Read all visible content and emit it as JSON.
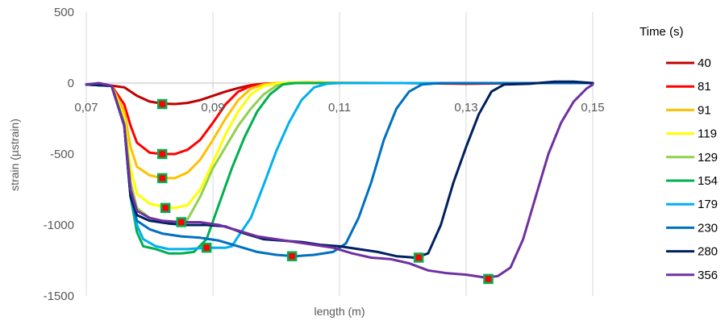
{
  "chart_data": {
    "type": "line",
    "xlabel": "length (m)",
    "ylabel": "strain (µstrain)",
    "xlim": [
      0.07,
      0.15
    ],
    "ylim": [
      -1500,
      500
    ],
    "x_ticks": [
      {
        "value": 0.07,
        "label": "0,07"
      },
      {
        "value": 0.09,
        "label": "0,09"
      },
      {
        "value": 0.11,
        "label": "0,11"
      },
      {
        "value": 0.13,
        "label": "0,13"
      },
      {
        "value": 0.15,
        "label": "0,15"
      }
    ],
    "y_ticks": [
      {
        "value": 500,
        "label": "500"
      },
      {
        "value": 0,
        "label": "0"
      },
      {
        "value": -500,
        "label": "-500"
      },
      {
        "value": -1000,
        "label": "-1000"
      },
      {
        "value": -1500,
        "label": "-1500"
      }
    ],
    "grid": "vertical",
    "legend": {
      "title": "Time (s)",
      "position": "right"
    },
    "series": [
      {
        "name": "40",
        "color": "#c00000",
        "points": [
          [
            0.07,
            -10
          ],
          [
            0.073,
            -12
          ],
          [
            0.076,
            -30
          ],
          [
            0.078,
            -90
          ],
          [
            0.08,
            -130
          ],
          [
            0.082,
            -145
          ],
          [
            0.084,
            -148
          ],
          [
            0.086,
            -140
          ],
          [
            0.088,
            -120
          ],
          [
            0.09,
            -90
          ],
          [
            0.092,
            -60
          ],
          [
            0.094,
            -35
          ],
          [
            0.096,
            -15
          ],
          [
            0.098,
            -5
          ],
          [
            0.101,
            0
          ],
          [
            0.105,
            5
          ],
          [
            0.11,
            0
          ],
          [
            0.12,
            0
          ],
          [
            0.13,
            -5
          ],
          [
            0.14,
            0
          ],
          [
            0.15,
            0
          ]
        ]
      },
      {
        "name": "81",
        "color": "#ff0000",
        "points": [
          [
            0.07,
            -10
          ],
          [
            0.074,
            -20
          ],
          [
            0.076,
            -150
          ],
          [
            0.077,
            -300
          ],
          [
            0.078,
            -420
          ],
          [
            0.08,
            -490
          ],
          [
            0.082,
            -500
          ],
          [
            0.084,
            -500
          ],
          [
            0.086,
            -470
          ],
          [
            0.088,
            -400
          ],
          [
            0.09,
            -280
          ],
          [
            0.092,
            -150
          ],
          [
            0.094,
            -60
          ],
          [
            0.096,
            -20
          ],
          [
            0.098,
            -5
          ],
          [
            0.101,
            0
          ],
          [
            0.11,
            0
          ],
          [
            0.12,
            0
          ],
          [
            0.13,
            0
          ],
          [
            0.14,
            0
          ],
          [
            0.15,
            0
          ]
        ]
      },
      {
        "name": "91",
        "color": "#ffc000",
        "points": [
          [
            0.07,
            -10
          ],
          [
            0.074,
            -20
          ],
          [
            0.076,
            -200
          ],
          [
            0.077,
            -450
          ],
          [
            0.078,
            -590
          ],
          [
            0.08,
            -650
          ],
          [
            0.082,
            -670
          ],
          [
            0.084,
            -670
          ],
          [
            0.086,
            -630
          ],
          [
            0.088,
            -540
          ],
          [
            0.09,
            -400
          ],
          [
            0.092,
            -250
          ],
          [
            0.094,
            -120
          ],
          [
            0.096,
            -40
          ],
          [
            0.098,
            -10
          ],
          [
            0.1,
            0
          ],
          [
            0.105,
            5
          ],
          [
            0.12,
            0
          ],
          [
            0.15,
            0
          ]
        ]
      },
      {
        "name": "119",
        "color": "#ffff00",
        "points": [
          [
            0.07,
            -10
          ],
          [
            0.074,
            -20
          ],
          [
            0.076,
            -250
          ],
          [
            0.077,
            -600
          ],
          [
            0.078,
            -780
          ],
          [
            0.08,
            -850
          ],
          [
            0.082,
            -870
          ],
          [
            0.084,
            -880
          ],
          [
            0.086,
            -860
          ],
          [
            0.088,
            -750
          ],
          [
            0.09,
            -560
          ],
          [
            0.092,
            -360
          ],
          [
            0.094,
            -200
          ],
          [
            0.096,
            -80
          ],
          [
            0.098,
            -20
          ],
          [
            0.1,
            -5
          ],
          [
            0.102,
            5
          ],
          [
            0.11,
            0
          ],
          [
            0.15,
            0
          ]
        ]
      },
      {
        "name": "129",
        "color": "#92d050",
        "points": [
          [
            0.07,
            -10
          ],
          [
            0.074,
            -20
          ],
          [
            0.076,
            -280
          ],
          [
            0.077,
            -700
          ],
          [
            0.078,
            -880
          ],
          [
            0.08,
            -950
          ],
          [
            0.082,
            -980
          ],
          [
            0.084,
            -990
          ],
          [
            0.086,
            -960
          ],
          [
            0.088,
            -800
          ],
          [
            0.09,
            -600
          ],
          [
            0.092,
            -450
          ],
          [
            0.094,
            -300
          ],
          [
            0.096,
            -180
          ],
          [
            0.098,
            -80
          ],
          [
            0.1,
            -20
          ],
          [
            0.102,
            0
          ],
          [
            0.11,
            0
          ],
          [
            0.15,
            0
          ]
        ]
      },
      {
        "name": "154",
        "color": "#00b050",
        "points": [
          [
            0.07,
            -10
          ],
          [
            0.074,
            -20
          ],
          [
            0.076,
            -300
          ],
          [
            0.077,
            -800
          ],
          [
            0.078,
            -1050
          ],
          [
            0.079,
            -1150
          ],
          [
            0.081,
            -1170
          ],
          [
            0.083,
            -1200
          ],
          [
            0.085,
            -1200
          ],
          [
            0.087,
            -1190
          ],
          [
            0.089,
            -1100
          ],
          [
            0.091,
            -850
          ],
          [
            0.093,
            -600
          ],
          [
            0.095,
            -380
          ],
          [
            0.097,
            -200
          ],
          [
            0.099,
            -80
          ],
          [
            0.101,
            -10
          ],
          [
            0.103,
            0
          ],
          [
            0.11,
            0
          ],
          [
            0.15,
            0
          ]
        ]
      },
      {
        "name": "179",
        "color": "#00b0f0",
        "points": [
          [
            0.07,
            -10
          ],
          [
            0.074,
            -20
          ],
          [
            0.076,
            -300
          ],
          [
            0.077,
            -800
          ],
          [
            0.078,
            -1000
          ],
          [
            0.079,
            -1100
          ],
          [
            0.081,
            -1150
          ],
          [
            0.083,
            -1170
          ],
          [
            0.086,
            -1170
          ],
          [
            0.089,
            -1160
          ],
          [
            0.092,
            -1160
          ],
          [
            0.093,
            -1150
          ],
          [
            0.094,
            -1080
          ],
          [
            0.096,
            -950
          ],
          [
            0.098,
            -720
          ],
          [
            0.1,
            -480
          ],
          [
            0.102,
            -280
          ],
          [
            0.104,
            -120
          ],
          [
            0.106,
            -30
          ],
          [
            0.108,
            -5
          ],
          [
            0.11,
            0
          ],
          [
            0.12,
            0
          ],
          [
            0.15,
            0
          ]
        ]
      },
      {
        "name": "230",
        "color": "#0070c0",
        "points": [
          [
            0.07,
            -10
          ],
          [
            0.074,
            -20
          ],
          [
            0.076,
            -300
          ],
          [
            0.077,
            -800
          ],
          [
            0.078,
            -970
          ],
          [
            0.08,
            -1030
          ],
          [
            0.082,
            -1060
          ],
          [
            0.085,
            -1080
          ],
          [
            0.088,
            -1090
          ],
          [
            0.091,
            -1110
          ],
          [
            0.094,
            -1150
          ],
          [
            0.097,
            -1190
          ],
          [
            0.1,
            -1210
          ],
          [
            0.103,
            -1220
          ],
          [
            0.106,
            -1210
          ],
          [
            0.109,
            -1190
          ],
          [
            0.111,
            -1130
          ],
          [
            0.113,
            -950
          ],
          [
            0.115,
            -700
          ],
          [
            0.117,
            -400
          ],
          [
            0.119,
            -180
          ],
          [
            0.121,
            -60
          ],
          [
            0.123,
            -10
          ],
          [
            0.126,
            0
          ],
          [
            0.13,
            0
          ],
          [
            0.15,
            0
          ]
        ]
      },
      {
        "name": "280",
        "color": "#002060",
        "points": [
          [
            0.07,
            -10
          ],
          [
            0.074,
            -20
          ],
          [
            0.076,
            -300
          ],
          [
            0.077,
            -800
          ],
          [
            0.078,
            -930
          ],
          [
            0.08,
            -970
          ],
          [
            0.083,
            -990
          ],
          [
            0.086,
            -1000
          ],
          [
            0.089,
            -1000
          ],
          [
            0.092,
            -1010
          ],
          [
            0.095,
            -1060
          ],
          [
            0.098,
            -1100
          ],
          [
            0.101,
            -1110
          ],
          [
            0.104,
            -1120
          ],
          [
            0.107,
            -1140
          ],
          [
            0.11,
            -1150
          ],
          [
            0.113,
            -1170
          ],
          [
            0.116,
            -1190
          ],
          [
            0.119,
            -1220
          ],
          [
            0.122,
            -1230
          ],
          [
            0.124,
            -1200
          ],
          [
            0.126,
            -1000
          ],
          [
            0.128,
            -700
          ],
          [
            0.13,
            -450
          ],
          [
            0.132,
            -220
          ],
          [
            0.134,
            -60
          ],
          [
            0.136,
            -10
          ],
          [
            0.14,
            -5
          ],
          [
            0.144,
            10
          ],
          [
            0.147,
            10
          ],
          [
            0.15,
            0
          ]
        ]
      },
      {
        "name": "356",
        "color": "#7030a0",
        "points": [
          [
            0.07,
            -10
          ],
          [
            0.072,
            0
          ],
          [
            0.074,
            -20
          ],
          [
            0.076,
            -300
          ],
          [
            0.077,
            -750
          ],
          [
            0.078,
            -900
          ],
          [
            0.08,
            -950
          ],
          [
            0.082,
            -970
          ],
          [
            0.085,
            -980
          ],
          [
            0.088,
            -980
          ],
          [
            0.091,
            -1000
          ],
          [
            0.094,
            -1040
          ],
          [
            0.097,
            -1080
          ],
          [
            0.1,
            -1100
          ],
          [
            0.103,
            -1120
          ],
          [
            0.106,
            -1140
          ],
          [
            0.109,
            -1160
          ],
          [
            0.112,
            -1200
          ],
          [
            0.115,
            -1230
          ],
          [
            0.118,
            -1240
          ],
          [
            0.121,
            -1270
          ],
          [
            0.124,
            -1320
          ],
          [
            0.127,
            -1340
          ],
          [
            0.13,
            -1350
          ],
          [
            0.133,
            -1370
          ],
          [
            0.135,
            -1360
          ],
          [
            0.137,
            -1300
          ],
          [
            0.139,
            -1100
          ],
          [
            0.141,
            -800
          ],
          [
            0.143,
            -500
          ],
          [
            0.145,
            -280
          ],
          [
            0.147,
            -130
          ],
          [
            0.149,
            -40
          ],
          [
            0.15,
            -10
          ]
        ]
      }
    ],
    "markers": {
      "fill": "#ff0000",
      "stroke": "#00b050",
      "points": [
        [
          0.082,
          -148
        ],
        [
          0.082,
          -500
        ],
        [
          0.082,
          -670
        ],
        [
          0.0825,
          -880
        ],
        [
          0.085,
          -980
        ],
        [
          0.089,
          -1160
        ],
        [
          0.1025,
          -1220
        ],
        [
          0.1225,
          -1230
        ],
        [
          0.1335,
          -1380
        ]
      ]
    }
  }
}
